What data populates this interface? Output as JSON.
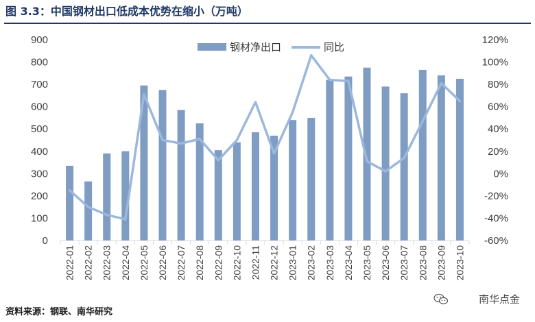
{
  "header": {
    "figure_title": "图 3.3：中国钢材出口低成本优势在缩小（万吨）"
  },
  "footer": {
    "source": "资料来源：钢联、南华研究",
    "watermark": "南华点金"
  },
  "colors": {
    "bar": "#7f9cc3",
    "line": "#9bb8dc",
    "title": "#1f3864",
    "axis": "#d9d9d9",
    "text": "#404040"
  },
  "chart_data": {
    "type": "bar",
    "title": "中国钢材出口低成本优势在缩小（万吨）",
    "categories": [
      "2022-01",
      "2022-02",
      "2022-03",
      "2022-04",
      "2022-05",
      "2022-06",
      "2022-07",
      "2022-08",
      "2022-09",
      "2022-10",
      "2022-11",
      "2022-12",
      "2023-01",
      "2023-02",
      "2023-03",
      "2023-04",
      "2023-05",
      "2023-06",
      "2023-07",
      "2023-08",
      "2023-09",
      "2023-10"
    ],
    "series": [
      {
        "name": "钢材净出口",
        "type": "bar",
        "axis": "left",
        "values": [
          335,
          265,
          390,
          400,
          695,
          675,
          585,
          525,
          405,
          440,
          485,
          470,
          540,
          550,
          720,
          735,
          775,
          690,
          660,
          765,
          740,
          725
        ]
      },
      {
        "name": "同比",
        "type": "line",
        "axis": "right",
        "unit": "%",
        "values": [
          -15,
          -30,
          -37,
          -41,
          71,
          30,
          27,
          31,
          12,
          30,
          64,
          18,
          55,
          106,
          84,
          83,
          11,
          2,
          14,
          47,
          81,
          65
        ]
      }
    ],
    "ylim_left": [
      0,
      900
    ],
    "yticks_left": [
      0,
      100,
      200,
      300,
      400,
      500,
      600,
      700,
      800,
      900
    ],
    "ylim_right": [
      -60,
      120
    ],
    "yticks_right": [
      "-60%",
      "-40%",
      "-20%",
      "0%",
      "20%",
      "40%",
      "60%",
      "80%",
      "100%",
      "120%"
    ],
    "legend_position": "top-center",
    "xlabel": "",
    "ylabel": ""
  }
}
